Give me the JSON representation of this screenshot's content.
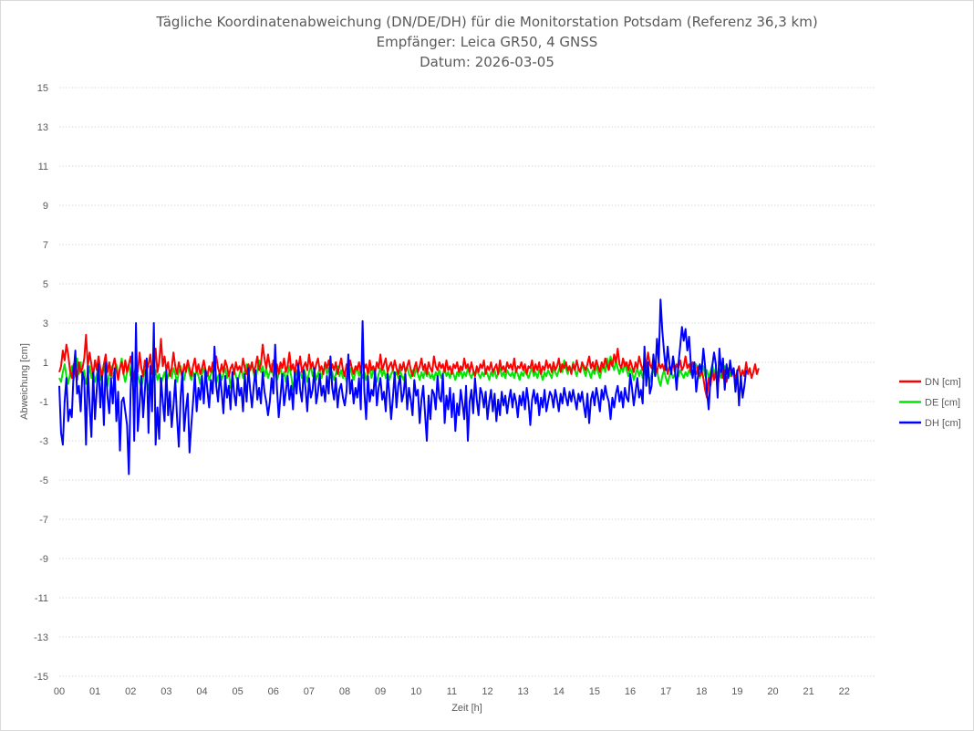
{
  "chart_data": {
    "type": "line",
    "title": [
      "Tägliche Koordinatenabweichung (DN/DE/DH) für die Monitorstation Potsdam (Referenz 36,3 km)",
      "Empfänger: Leica GR50, 4 GNSS",
      "Datum: 2026-03-05"
    ],
    "xlabel": "Zeit [h]",
    "ylabel": "Abweichung [cm]",
    "ylim": [
      -15,
      15
    ],
    "xlim": [
      0,
      22.9
    ],
    "y_ticks": [
      "15",
      "13",
      "11",
      "9",
      "7",
      "5",
      "3",
      "1",
      "-1",
      "-3",
      "-5",
      "-7",
      "-9",
      "-11",
      "-13",
      "-15"
    ],
    "x_ticks": [
      "00",
      "01",
      "02",
      "03",
      "04",
      "05",
      "06",
      "07",
      "08",
      "09",
      "10",
      "11",
      "12",
      "13",
      "14",
      "15",
      "16",
      "17",
      "18",
      "19",
      "20",
      "21",
      "22"
    ],
    "grid": "horizontal dotted",
    "legend_position": "right",
    "sample_interval_h": 0.05,
    "series": [
      {
        "name": "DN [cm]",
        "color": "#ff0000",
        "values": [
          0.5,
          0.8,
          1.6,
          1.1,
          1.9,
          1.4,
          0.6,
          0.2,
          0.9,
          0.4,
          0.1,
          1.0,
          0.5,
          0.7,
          1.2,
          2.4,
          0.8,
          1.5,
          0.9,
          0.3,
          1.1,
          0.6,
          1.3,
          0.7,
          0.2,
          0.9,
          1.4,
          0.5,
          1.0,
          0.3,
          0.8,
          1.2,
          0.6,
          0.1,
          0.7,
          1.0,
          0.4,
          1.1,
          0.5,
          0.9,
          1.3,
          0.6,
          0.2,
          1.0,
          0.5,
          1.5,
          0.7,
          0.3,
          1.1,
          0.6,
          0.9,
          1.4,
          0.4,
          0.8,
          1.7,
          0.5,
          1.0,
          2.2,
          0.8,
          1.3,
          0.6,
          1.0,
          0.3,
          0.7,
          1.5,
          0.8,
          0.4,
          1.0,
          0.6,
          0.2,
          0.9,
          0.5,
          1.1,
          0.7,
          0.3,
          0.8,
          1.2,
          0.5,
          0.9,
          0.4,
          0.7,
          1.1,
          0.6,
          0.3,
          0.8,
          0.5,
          1.0,
          0.6,
          1.3,
          0.7,
          0.4,
          0.9,
          0.5,
          1.1,
          0.8,
          0.3,
          0.7,
          0.9,
          0.4,
          1.0,
          0.6,
          0.8,
          0.5,
          1.2,
          0.7,
          0.4,
          0.9,
          0.6,
          1.0,
          0.5,
          0.8,
          1.3,
          0.6,
          0.9,
          1.9,
          1.2,
          0.7,
          1.4,
          0.8,
          0.5,
          1.1,
          0.6,
          0.9,
          0.4,
          1.0,
          0.7,
          1.2,
          0.5,
          0.8,
          1.5,
          0.6,
          0.9,
          0.4,
          1.1,
          0.7,
          1.3,
          0.5,
          0.8,
          1.0,
          0.6,
          1.4,
          0.7,
          1.0,
          0.5,
          0.9,
          1.2,
          0.6,
          0.8,
          0.4,
          1.0,
          0.7,
          1.1,
          0.5,
          0.9,
          0.6,
          1.0,
          0.4,
          0.8,
          1.2,
          0.6,
          0.3,
          0.9,
          0.5,
          1.1,
          0.7,
          0.4,
          0.8,
          0.6,
          1.0,
          0.5,
          1.3,
          0.7,
          0.9,
          0.4,
          1.1,
          0.6,
          0.8,
          0.5,
          1.0,
          0.7,
          1.4,
          0.6,
          0.9,
          1.2,
          0.5,
          0.8,
          1.0,
          0.6,
          1.1,
          0.7,
          0.4,
          0.9,
          0.6,
          1.0,
          0.5,
          0.8,
          1.1,
          0.6,
          0.3,
          0.7,
          1.0,
          0.5,
          0.8,
          1.2,
          0.6,
          0.9,
          0.4,
          1.0,
          0.7,
          0.5,
          1.3,
          0.8,
          0.6,
          1.0,
          0.7,
          0.9,
          0.5,
          1.1,
          0.6,
          0.8,
          0.4,
          0.9,
          0.7,
          1.0,
          0.5,
          0.8,
          0.6,
          1.2,
          0.7,
          0.9,
          0.5,
          1.0,
          0.6,
          0.3,
          0.8,
          0.5,
          0.9,
          0.7,
          1.1,
          0.4,
          0.8,
          0.6,
          1.0,
          0.5,
          0.7,
          0.9,
          0.4,
          1.1,
          0.6,
          0.8,
          0.5,
          1.0,
          0.7,
          0.9,
          0.6,
          1.2,
          0.5,
          0.8,
          0.7,
          1.0,
          0.6,
          0.9,
          0.4,
          0.8,
          0.7,
          1.1,
          0.5,
          0.9,
          0.6,
          1.0,
          0.4,
          0.8,
          0.6,
          1.1,
          0.7,
          0.9,
          0.5,
          1.0,
          0.6,
          0.8,
          1.2,
          0.5,
          0.9,
          0.7,
          1.0,
          0.6,
          0.8,
          0.4,
          0.9,
          0.6,
          1.1,
          0.7,
          0.5,
          1.0,
          0.8,
          0.6,
          0.9,
          1.3,
          0.7,
          1.0,
          0.6,
          1.1,
          0.8,
          0.5,
          1.0,
          0.7,
          1.2,
          0.9,
          0.6,
          1.1,
          0.8,
          1.4,
          1.0,
          1.7,
          0.9,
          0.7,
          1.2,
          0.8,
          1.0,
          0.6,
          1.1,
          0.8,
          0.5,
          1.0,
          0.7,
          1.3,
          0.9,
          0.6,
          1.0,
          0.8,
          1.5,
          0.9,
          0.7,
          1.2,
          0.8,
          0.5,
          1.0,
          0.7,
          0.9,
          0.6,
          1.1,
          0.4,
          0.8,
          0.6,
          1.0,
          0.5,
          0.9,
          0.7,
          1.1,
          0.6,
          0.8,
          1.3,
          0.7,
          0.9,
          0.5,
          1.0,
          0.6,
          0.4,
          0.8,
          0.3,
          0.6,
          0.2,
          -0.4,
          -0.8,
          0.2,
          -0.2,
          0.6,
          0.1,
          0.5,
          -0.3,
          0.4,
          0.8,
          0.2,
          0.6,
          0.0,
          0.4,
          0.9,
          0.3,
          0.7,
          0.1,
          0.5,
          0.8,
          0.2,
          0.6,
          0.3,
          1.0,
          0.4,
          0.7,
          0.2,
          0.5,
          0.9,
          0.4,
          0.7
        ]
      },
      {
        "name": "DE [cm]",
        "color": "#00e600",
        "values": [
          0.2,
          0.0,
          0.5,
          0.9,
          0.3,
          -0.1,
          0.4,
          0.8,
          0.1,
          0.6,
          1.2,
          0.4,
          1.0,
          0.2,
          0.6,
          -0.1,
          0.3,
          0.8,
          0.2,
          0.5,
          0.0,
          0.4,
          0.7,
          0.1,
          0.5,
          0.9,
          0.3,
          -0.2,
          0.4,
          0.8,
          0.2,
          0.6,
          0.9,
          0.3,
          0.7,
          1.2,
          0.4,
          0.0,
          0.5,
          0.9,
          0.3,
          0.7,
          0.1,
          -0.2,
          0.4,
          0.0,
          -0.3,
          0.2,
          0.6,
          0.1,
          -0.4,
          0.2,
          -0.2,
          0.3,
          0.6,
          0.1,
          0.4,
          -0.1,
          0.2,
          0.5,
          0.0,
          0.3,
          0.6,
          0.2,
          0.7,
          0.4,
          0.0,
          0.5,
          0.8,
          0.3,
          0.1,
          0.6,
          0.9,
          0.4,
          0.1,
          0.5,
          0.2,
          0.6,
          0.3,
          -0.1,
          0.4,
          0.7,
          0.2,
          0.5,
          0.1,
          0.4,
          0.6,
          0.2,
          -0.1,
          0.3,
          0.5,
          0.1,
          0.4,
          0.7,
          0.2,
          0.5,
          -0.3,
          0.2,
          0.6,
          0.3,
          0.0,
          0.4,
          0.7,
          0.2,
          0.6,
          0.9,
          0.3,
          0.7,
          1.0,
          0.4,
          0.1,
          0.6,
          1.1,
          0.5,
          0.8,
          0.3,
          0.7,
          0.2,
          0.5,
          0.9,
          0.3,
          0.6,
          0.1,
          0.4,
          0.7,
          0.2,
          0.5,
          0.0,
          0.4,
          0.8,
          0.3,
          -0.4,
          0.2,
          0.6,
          0.1,
          0.5,
          0.2,
          0.7,
          0.4,
          0.0,
          0.5,
          0.8,
          0.3,
          0.6,
          0.1,
          0.4,
          0.7,
          0.2,
          0.5,
          0.9,
          0.4,
          0.7,
          0.2,
          0.5,
          0.1,
          0.4,
          0.8,
          0.3,
          0.6,
          0.2,
          0.5,
          0.0,
          0.3,
          0.7,
          0.4,
          0.1,
          0.5,
          0.8,
          0.3,
          0.6,
          0.2,
          0.5,
          0.1,
          0.4,
          0.7,
          0.2,
          0.6,
          0.3,
          0.0,
          0.4,
          0.7,
          0.3,
          0.6,
          0.2,
          0.5,
          0.1,
          0.4,
          0.6,
          0.3,
          0.5,
          0.2,
          0.6,
          0.3,
          0.1,
          0.5,
          0.8,
          0.4,
          0.2,
          0.6,
          0.3,
          0.7,
          0.4,
          0.1,
          0.5,
          0.2,
          0.6,
          0.3,
          0.5,
          0.2,
          0.4,
          0.1,
          0.5,
          0.3,
          0.6,
          0.2,
          0.4,
          0.7,
          0.3,
          0.5,
          0.2,
          0.6,
          0.4,
          0.1,
          0.5,
          0.3,
          0.6,
          0.2,
          0.5,
          0.3,
          0.7,
          0.4,
          0.2,
          0.5,
          0.3,
          0.6,
          0.4,
          0.2,
          0.5,
          0.3,
          0.6,
          0.4,
          0.1,
          0.5,
          0.3,
          0.6,
          0.2,
          0.4,
          0.7,
          0.3,
          0.5,
          0.2,
          0.6,
          0.4,
          0.3,
          0.5,
          0.2,
          0.6,
          0.4,
          0.1,
          0.5,
          0.3,
          0.6,
          0.4,
          0.2,
          0.5,
          0.7,
          0.3,
          0.5,
          0.2,
          0.6,
          0.4,
          0.1,
          0.5,
          0.3,
          0.6,
          0.4,
          0.2,
          0.7,
          0.5,
          0.3,
          0.6,
          0.9,
          0.5,
          1.1,
          0.7,
          0.4,
          0.8,
          0.5,
          1.0,
          0.6,
          0.3,
          0.7,
          0.5,
          0.9,
          0.6,
          0.3,
          0.7,
          0.5,
          0.2,
          0.6,
          0.4,
          0.8,
          0.5,
          0.2,
          0.6,
          0.9,
          0.5,
          1.2,
          0.8,
          1.3,
          0.9,
          0.6,
          1.1,
          0.7,
          0.4,
          0.8,
          0.5,
          1.0,
          0.6,
          0.3,
          0.7,
          0.5,
          0.1,
          0.4,
          0.7,
          0.3,
          0.6,
          0.2,
          0.5,
          0.8,
          0.3,
          0.0,
          0.4,
          0.7,
          0.3,
          0.6,
          0.1,
          -0.2,
          0.3,
          0.6,
          0.2,
          -0.1,
          0.3,
          0.5,
          0.2,
          0.4,
          0.1,
          0.3,
          0.6,
          0.4,
          0.2,
          0.5,
          0.3,
          0.6,
          0.4,
          0.3,
          0.6,
          0.9,
          0.4,
          0.2,
          0.5,
          0.8,
          0.3,
          0.6,
          0.2,
          0.5,
          0.9,
          0.4,
          0.7,
          0.3,
          0.6,
          0.2,
          0.5,
          0.8,
          0.4,
          0.7,
          0.3,
          0.6,
          0.4
        ]
      },
      {
        "name": "DH [cm]",
        "color": "#0000ff",
        "values": [
          -0.2,
          -2.6,
          -3.2,
          -1.0,
          0.2,
          -2.0,
          -1.4,
          -1.8,
          0.4,
          1.6,
          -0.6,
          -0.2,
          -1.5,
          0.5,
          0.1,
          -3.2,
          0.8,
          -1.2,
          -2.8,
          0.5,
          -1.9,
          -0.4,
          0.9,
          -1.3,
          0.3,
          -2.2,
          1.0,
          -0.7,
          -1.6,
          0.2,
          -1.1,
          0.7,
          -2.0,
          -0.5,
          -3.5,
          -1.0,
          -0.8,
          -1.5,
          -2.2,
          -4.7,
          -0.4,
          1.5,
          -3.0,
          3.0,
          -2.5,
          -1.2,
          0.3,
          -1.8,
          -0.4,
          1.2,
          -2.6,
          0.8,
          -1.5,
          3.0,
          -3.2,
          -1.3,
          -2.9,
          0.2,
          -1.0,
          -2.0,
          0.6,
          -1.7,
          -0.5,
          -2.3,
          -1.2,
          0.1,
          -1.8,
          -3.3,
          -0.8,
          0.5,
          -2.5,
          -1.4,
          -0.6,
          -3.6,
          -2.2,
          -1.0,
          0.4,
          -1.5,
          -0.3,
          -0.9,
          0.3,
          -1.1,
          0.6,
          -0.4,
          -1.3,
          0.1,
          -0.6,
          1.8,
          -0.2,
          -1.0,
          0.4,
          -0.5,
          -1.6,
          0.3,
          -0.8,
          -0.2,
          -1.4,
          0.5,
          -0.6,
          -1.2,
          0.2,
          -0.7,
          -0.3,
          -1.5,
          0.4,
          -1.0,
          0.7,
          -0.4,
          -1.3,
          -0.2,
          0.6,
          -0.9,
          -0.3,
          -1.1,
          0.5,
          -0.5,
          -1.0,
          -1.7,
          -1.0,
          0.2,
          -0.6,
          1.9,
          -0.3,
          -1.8,
          -0.7,
          0.4,
          -1.2,
          -0.5,
          0.3,
          -0.9,
          -0.2,
          -1.4,
          0.5,
          -0.6,
          0.9,
          -0.4,
          -1.0,
          0.6,
          -0.3,
          -1.5,
          0.2,
          -0.8,
          -0.4,
          0.7,
          -1.1,
          -0.5,
          0.4,
          -0.7,
          -0.2,
          -1.0,
          0.3,
          -0.6,
          1.3,
          -0.3,
          -0.9,
          0.2,
          -1.3,
          -0.4,
          -0.1,
          -0.8,
          -1.2,
          -0.5,
          1.4,
          -0.6,
          0.1,
          -1.1,
          -0.3,
          -0.8,
          0.2,
          -1.4,
          3.1,
          -0.5,
          -1.9,
          0.3,
          -1.0,
          -0.4,
          -0.7,
          0.6,
          -1.2,
          -0.3,
          0.2,
          -0.9,
          -0.5,
          -1.5,
          0.4,
          -0.6,
          -1.9,
          -0.8,
          0.5,
          -1.3,
          -0.2,
          0.3,
          -1.0,
          -0.6,
          0.4,
          -1.4,
          -0.3,
          -0.9,
          -1.7,
          0.1,
          -0.7,
          -0.4,
          -2.1,
          -0.9,
          -0.2,
          -1.6,
          -3.0,
          -0.7,
          -1.9,
          -0.4,
          -0.6,
          -1.4,
          0.3,
          -0.8,
          -1.0,
          0.4,
          -2.1,
          -0.7,
          -1.4,
          -0.3,
          -1.8,
          -0.6,
          -2.5,
          -1.1,
          -1.7,
          -0.4,
          -1.1,
          -1.9,
          -0.2,
          -3.0,
          -1.0,
          -0.4,
          -1.6,
          0.2,
          -0.9,
          -1.7,
          -0.3,
          -0.6,
          -1.3,
          -0.5,
          -1.9,
          -1.0,
          -0.4,
          -1.5,
          -0.6,
          -2.0,
          -0.9,
          -1.7,
          -0.5,
          -1.2,
          -0.7,
          -1.6,
          -0.9,
          -0.4,
          -1.3,
          -0.6,
          -1.0,
          -1.8,
          -0.7,
          -1.2,
          -0.5,
          -1.4,
          -0.3,
          -1.0,
          -2.2,
          -0.9,
          -0.4,
          -1.1,
          -0.6,
          -1.7,
          -0.8,
          -1.3,
          -0.4,
          -1.5,
          -1.0,
          -0.5,
          -0.7,
          -1.3,
          -0.4,
          -0.9,
          -1.5,
          -0.6,
          -1.1,
          -0.3,
          -0.8,
          -1.2,
          -0.5,
          -1.0,
          -0.4,
          -0.9,
          -1.4,
          -0.6,
          -1.0,
          -0.5,
          -1.2,
          -1.8,
          -0.6,
          -2.1,
          -0.9,
          -0.5,
          -1.2,
          -0.3,
          -0.8,
          -1.5,
          -0.4,
          -0.9,
          -0.2,
          -0.7,
          -1.0,
          -1.9,
          -0.8,
          -1.3,
          -0.6,
          -0.2,
          -1.0,
          -0.5,
          -1.3,
          -0.3,
          -0.8,
          -1.0,
          0.4,
          -0.3,
          -1.2,
          -0.5,
          0.2,
          -0.8,
          -0.4,
          -1.1,
          1.8,
          -0.2,
          1.0,
          -0.6,
          -0.2,
          1.4,
          0.3,
          2.2,
          1.0,
          4.2,
          2.6,
          1.5,
          0.6,
          1.8,
          0.9,
          0.4,
          1.3,
          0.7,
          -0.4,
          0.9,
          1.8,
          2.8,
          2.1,
          2.7,
          1.6,
          2.3,
          0.9,
          0.2,
          1.0,
          -0.5,
          0.3,
          0.9,
          0.5,
          1.7,
          0.8,
          -0.5,
          -1.4,
          0.2,
          0.8,
          1.5,
          0.9,
          -0.8,
          1.7,
          0.5,
          1.2,
          -0.4,
          0.9,
          0.2,
          1.1,
          0.4,
          0.7,
          -0.5,
          0.6,
          -1.2,
          0.3,
          -0.8,
          -0.2,
          0.6
        ]
      }
    ]
  }
}
